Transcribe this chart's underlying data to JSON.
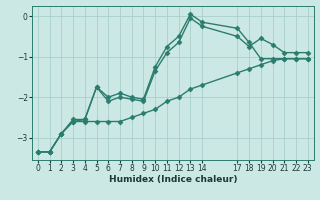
{
  "title": "",
  "xlabel": "Humidex (Indice chaleur)",
  "ylabel": "",
  "bg_color": "#cce8e4",
  "grid_color": "#aacfcb",
  "line_color": "#2a7d6e",
  "xlim": [
    -0.5,
    23.5
  ],
  "ylim": [
    -3.55,
    0.25
  ],
  "x_ticks": [
    0,
    1,
    2,
    3,
    4,
    5,
    6,
    7,
    8,
    9,
    10,
    11,
    12,
    13,
    14,
    17,
    18,
    19,
    20,
    21,
    22,
    23
  ],
  "y_ticks": [
    0,
    -1,
    -2,
    -3
  ],
  "series": [
    [
      0.0,
      1.0,
      2.0,
      3.0,
      4.0,
      5.0,
      6.0,
      7.0,
      8.0,
      9.0,
      10.0,
      11.0,
      12.0,
      13.0,
      14.0,
      17.0,
      18.0,
      19.0,
      20.0,
      21.0,
      22.0,
      23.0
    ],
    [
      -3.35,
      -3.35,
      -2.9,
      -2.55,
      -2.55,
      -1.75,
      -2.0,
      -1.9,
      -2.0,
      -2.05,
      -1.25,
      -0.75,
      -0.5,
      0.05,
      -0.15,
      -0.3,
      -0.65,
      -1.05,
      -1.05,
      -1.05,
      -1.05,
      -1.05
    ],
    [
      -3.35,
      -3.35,
      -2.9,
      -2.6,
      -2.55,
      -1.75,
      -2.1,
      -2.0,
      -2.05,
      -2.1,
      -1.35,
      -0.9,
      -0.65,
      -0.05,
      -0.25,
      -0.5,
      -0.75,
      -0.55,
      -0.7,
      -0.9,
      -0.9,
      -0.9
    ],
    [
      -3.35,
      -3.35,
      -2.9,
      -2.6,
      -2.6,
      -2.6,
      -2.6,
      -2.6,
      -2.5,
      -2.4,
      -2.3,
      -2.1,
      -2.0,
      -1.8,
      -1.7,
      -1.4,
      -1.3,
      -1.2,
      -1.1,
      -1.05,
      -1.05,
      -1.05
    ]
  ],
  "marker": "D",
  "markersize": 2.5,
  "linewidth": 1.0,
  "tick_fontsize": 5.5,
  "xlabel_fontsize": 6.5
}
